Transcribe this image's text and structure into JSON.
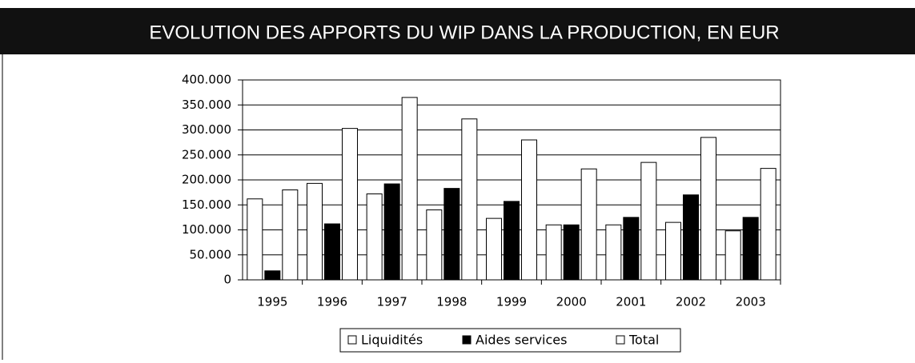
{
  "chart_data": {
    "type": "bar",
    "title": "EVOLUTION DES APPORTS DU WIP DANS LA PRODUCTION, EN EUR",
    "categories": [
      "1995",
      "1996",
      "1997",
      "1998",
      "1999",
      "2000",
      "2001",
      "2002",
      "2003"
    ],
    "series": [
      {
        "name": "Liquidités",
        "color": "#ffffff",
        "values": [
          162000,
          193000,
          172000,
          140000,
          123000,
          110000,
          110000,
          115000,
          98000
        ]
      },
      {
        "name": "Aides services",
        "color": "#000000",
        "values": [
          18000,
          112000,
          192000,
          183000,
          157000,
          110000,
          125000,
          170000,
          125000
        ]
      },
      {
        "name": "Total",
        "color": "#ffffff",
        "values": [
          180000,
          303000,
          365000,
          322000,
          280000,
          222000,
          235000,
          285000,
          223000
        ]
      }
    ],
    "ylim": [
      0,
      400000
    ],
    "yticks": [
      0,
      {
        "value": 50000,
        "label": "50.000"
      },
      {
        "value": 100000,
        "label": "100.000"
      },
      {
        "value": 150000,
        "label": "150.000"
      },
      {
        "value": 200000,
        "label": "200.000"
      },
      {
        "value": 250000,
        "label": "250.000"
      },
      {
        "value": 300000,
        "label": "300.000"
      },
      {
        "value": 350000,
        "label": "350.000"
      },
      {
        "value": 400000,
        "label": "400.000"
      }
    ],
    "grid": true,
    "legend": "bottom"
  }
}
